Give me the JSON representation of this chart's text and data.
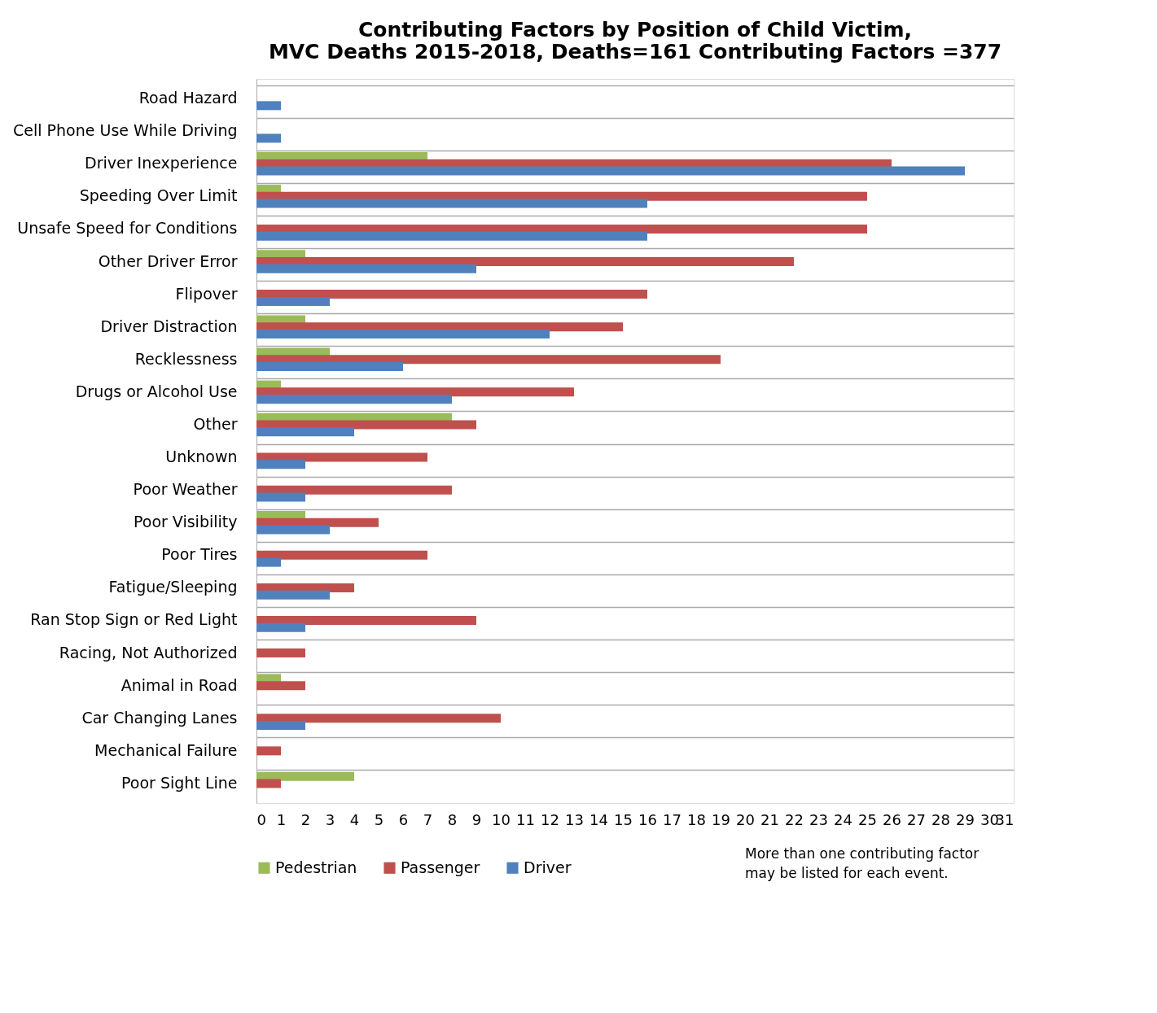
{
  "chart_data": {
    "type": "bar",
    "orientation": "horizontal",
    "title": "Contributing Factors by Position of Child Victim,\nMVC Deaths 2015-2018, Deaths=161 Contributing Factors =377",
    "categories": [
      "Road Hazard",
      "Cell Phone Use While Driving",
      "Driver Inexperience",
      "Speeding Over Limit",
      "Unsafe Speed for Conditions",
      "Other Driver Error",
      "Flipover",
      "Driver Distraction",
      "Recklessness",
      "Drugs or Alcohol Use",
      "Other",
      "Unknown",
      "Poor Weather",
      "Poor Visibility",
      "Poor Tires",
      "Fatigue/Sleeping",
      "Ran Stop Sign or Red Light",
      "Racing, Not Authorized",
      "Animal in Road",
      "Car Changing Lanes",
      "Mechanical Failure",
      "Poor Sight Line"
    ],
    "series": [
      {
        "name": "Pedestrian",
        "color": "#9bbb59",
        "values": [
          null,
          null,
          7,
          1,
          null,
          2,
          null,
          2,
          3,
          1,
          8,
          null,
          null,
          2,
          null,
          null,
          null,
          null,
          1,
          null,
          null,
          4
        ]
      },
      {
        "name": "Passenger",
        "color": "#c0504d",
        "values": [
          null,
          null,
          26,
          25,
          25,
          22,
          16,
          15,
          19,
          13,
          9,
          7,
          8,
          5,
          7,
          4,
          9,
          2,
          2,
          10,
          1,
          1
        ]
      },
      {
        "name": "Driver",
        "color": "#4f81bd",
        "values": [
          1,
          1,
          29,
          16,
          16,
          9,
          3,
          12,
          6,
          8,
          4,
          2,
          2,
          3,
          1,
          3,
          2,
          null,
          null,
          2,
          null,
          null
        ]
      }
    ],
    "xlim": [
      0,
      31
    ],
    "xticks": [
      0,
      1,
      2,
      3,
      4,
      5,
      6,
      7,
      8,
      9,
      10,
      11,
      12,
      13,
      14,
      15,
      16,
      17,
      18,
      19,
      20,
      21,
      22,
      23,
      24,
      25,
      26,
      27,
      28,
      29,
      30,
      31
    ],
    "grid": "y",
    "legend": "bottom",
    "annotations": [
      "More than one contributing factor may be listed for each event."
    ]
  }
}
